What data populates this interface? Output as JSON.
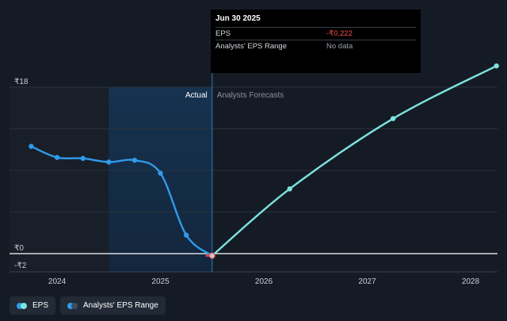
{
  "chart_data": {
    "type": "line",
    "y_ticks": [
      {
        "value": 18,
        "label": "₹18"
      },
      {
        "value": 0,
        "label": "₹0"
      },
      {
        "value": -2,
        "label": "-₹2"
      }
    ],
    "x_ticks": [
      {
        "value": 2024.0,
        "label": "2024"
      },
      {
        "value": 2025.0,
        "label": "2025"
      },
      {
        "value": 2026.0,
        "label": "2026"
      },
      {
        "value": 2027.0,
        "label": "2027"
      },
      {
        "value": 2028.0,
        "label": "2028"
      }
    ],
    "xlim": [
      2023.54,
      2028.26
    ],
    "ylim": [
      -2,
      18
    ],
    "divider_x": 2025.5,
    "highlight_range": [
      2024.5,
      2025.5
    ],
    "region_labels": {
      "actual": "Actual",
      "forecast": "Analysts Forecasts"
    },
    "series": [
      {
        "name": "EPS",
        "color": "#2f9bea",
        "x": [
          2023.75,
          2024.0,
          2024.25,
          2024.5,
          2024.75,
          2025.0,
          2025.25,
          2025.5
        ],
        "y": [
          11.6,
          10.4,
          10.3,
          9.9,
          10.1,
          8.7,
          2.0,
          -0.222
        ]
      },
      {
        "name": "EPS Forecast",
        "color": "#7de3e0",
        "x": [
          2025.5,
          2026.25,
          2027.25,
          2028.25
        ],
        "y": [
          -0.222,
          7.0,
          14.6,
          20.3
        ]
      }
    ],
    "highlight_point": {
      "x": 2025.5,
      "y": -0.222
    }
  },
  "tooltip": {
    "date": "Jun 30 2025",
    "rows": [
      {
        "label": "EPS",
        "value": "-₹0.222"
      },
      {
        "label": "Analysts' EPS Range",
        "value": "No data"
      }
    ]
  },
  "legend": [
    {
      "label": "EPS",
      "colors": [
        "#2f9bea",
        "#7de3e0"
      ]
    },
    {
      "label": "Analysts' EPS Range",
      "colors": [
        "#2f9bea",
        "#3f4d5e"
      ]
    }
  ]
}
